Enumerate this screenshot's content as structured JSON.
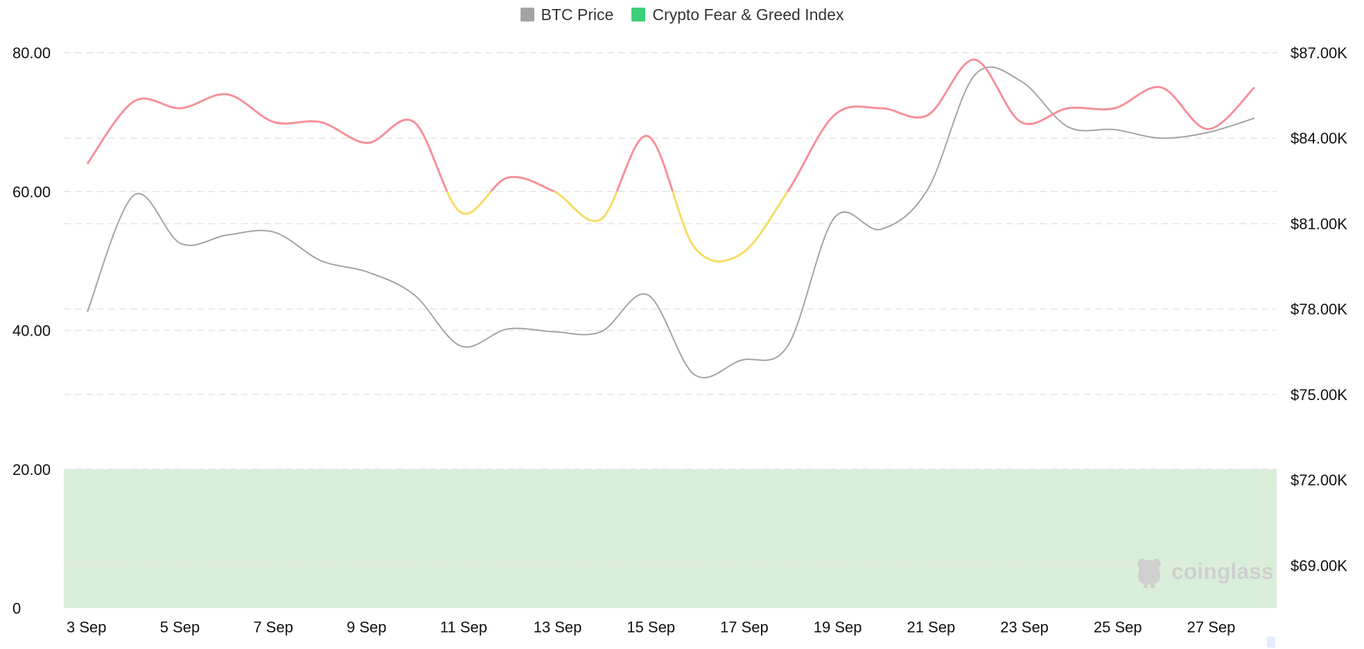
{
  "legend": {
    "btc": {
      "label": "BTC Price",
      "color": "#a3a3a3"
    },
    "fgi": {
      "label": "Crypto Fear & Greed Index",
      "color": "#3ecf7a"
    }
  },
  "watermark": {
    "text": "coinglass",
    "icon": "bull-logo-icon"
  },
  "colors": {
    "greed": "#f7909a",
    "neutral": "#f6dc63",
    "btc_line": "#a3a3a3",
    "extreme_fear_band": "#d9efd9",
    "grid": "#e6e6e6"
  },
  "chart_data": {
    "type": "line",
    "x": [
      "3 Sep",
      "4 Sep",
      "5 Sep",
      "6 Sep",
      "7 Sep",
      "8 Sep",
      "9 Sep",
      "10 Sep",
      "11 Sep",
      "12 Sep",
      "13 Sep",
      "14 Sep",
      "15 Sep",
      "16 Sep",
      "17 Sep",
      "18 Sep",
      "19 Sep",
      "20 Sep",
      "21 Sep",
      "22 Sep",
      "23 Sep",
      "24 Sep",
      "25 Sep",
      "26 Sep",
      "27 Sep",
      "28 Sep"
    ],
    "x_tick_labels": [
      "3 Sep",
      "5 Sep",
      "7 Sep",
      "9 Sep",
      "11 Sep",
      "13 Sep",
      "15 Sep",
      "17 Sep",
      "19 Sep",
      "21 Sep",
      "23 Sep",
      "25 Sep",
      "27 Sep"
    ],
    "series": [
      {
        "name": "Crypto Fear & Greed Index",
        "axis": "left",
        "values": [
          64,
          73,
          72,
          74,
          70,
          70,
          67,
          70,
          57,
          62,
          60,
          56,
          68,
          52,
          51,
          60,
          71,
          72,
          71,
          79,
          70,
          72,
          72,
          75,
          69,
          75
        ]
      },
      {
        "name": "BTC Price",
        "axis": "right",
        "values": [
          77900,
          82000,
          80300,
          80600,
          80700,
          79700,
          79300,
          78500,
          76700,
          77300,
          77200,
          77200,
          78500,
          75700,
          76200,
          76700,
          81200,
          80800,
          82200,
          86200,
          86000,
          84400,
          84300,
          84000,
          84200,
          84700
        ]
      }
    ],
    "left_axis": {
      "ylim": [
        0,
        80
      ],
      "ticks": [
        0,
        20,
        40,
        60,
        80
      ],
      "tick_labels": [
        "0",
        "20.00",
        "40.00",
        "60.00",
        "80.00"
      ]
    },
    "right_axis": {
      "ylim": [
        67500,
        87000
      ],
      "ticks": [
        69000,
        72000,
        75000,
        78000,
        81000,
        84000,
        87000
      ],
      "tick_labels": [
        "$69.00K",
        "$72.00K",
        "$75.00K",
        "$78.00K",
        "$81.00K",
        "$84.00K",
        "$87.00K"
      ]
    },
    "bands": [
      {
        "from": 0,
        "to": 20,
        "color": "#d9efd9"
      }
    ],
    "color_thresholds": {
      "neutral_below": 60
    },
    "grid": true,
    "legend_position": "top-center"
  }
}
